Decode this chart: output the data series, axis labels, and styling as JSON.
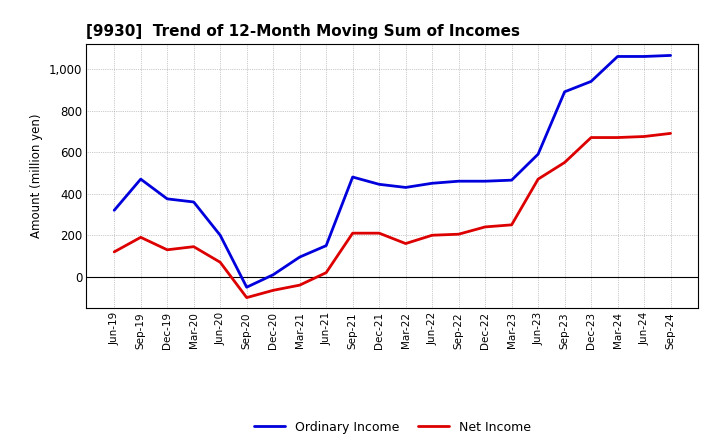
{
  "title": "[9930]  Trend of 12-Month Moving Sum of Incomes",
  "ylabel": "Amount (million yen)",
  "background_color": "#ffffff",
  "grid_color": "#999999",
  "x_labels": [
    "Jun-19",
    "Sep-19",
    "Dec-19",
    "Mar-20",
    "Jun-20",
    "Sep-20",
    "Dec-20",
    "Mar-21",
    "Jun-21",
    "Sep-21",
    "Dec-21",
    "Mar-22",
    "Jun-22",
    "Sep-22",
    "Dec-22",
    "Mar-23",
    "Jun-23",
    "Sep-23",
    "Dec-23",
    "Mar-24",
    "Jun-24",
    "Sep-24"
  ],
  "ordinary_income": [
    320,
    470,
    375,
    360,
    200,
    -50,
    10,
    95,
    150,
    480,
    445,
    430,
    450,
    460,
    460,
    465,
    590,
    890,
    940,
    1060,
    1060,
    1065
  ],
  "net_income": [
    120,
    190,
    130,
    145,
    70,
    -100,
    -65,
    -40,
    20,
    210,
    210,
    160,
    200,
    205,
    240,
    250,
    470,
    550,
    670,
    670,
    675,
    690
  ],
  "ordinary_income_color": "#0000dd",
  "net_income_color": "#dd0000",
  "ylim_min": -150,
  "ylim_max": 1120,
  "yticks": [
    0,
    200,
    400,
    600,
    800,
    1000
  ],
  "ytick_labels": [
    "0",
    "200",
    "400",
    "600",
    "800",
    "1,000"
  ],
  "legend_labels": [
    "Ordinary Income",
    "Net Income"
  ],
  "line_width": 2.0
}
